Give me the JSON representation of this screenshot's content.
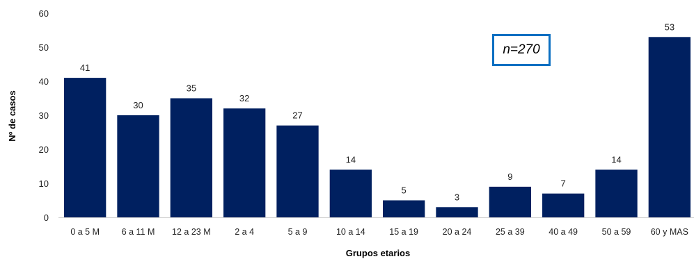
{
  "chart_data": {
    "type": "bar",
    "title": "",
    "xlabel": "Grupos etarios",
    "ylabel": "Nº de casos",
    "categories": [
      "0 a 5 M",
      "6 a 11 M",
      "12 a 23 M",
      "2 a 4",
      "5 a 9",
      "10 a 14",
      "15 a 19",
      "20 a 24",
      "25 a 39",
      "40 a 49",
      "50 a 59",
      "60 y MAS"
    ],
    "values": [
      41,
      30,
      35,
      32,
      27,
      14,
      5,
      3,
      9,
      7,
      14,
      53
    ],
    "ylim": [
      0,
      60
    ],
    "yticks": [
      0,
      10,
      20,
      30,
      40,
      50,
      60
    ],
    "grid": false,
    "bar_color": "#002060",
    "annotation": "n=270",
    "annotation_border_color": "#0a6fc2"
  }
}
